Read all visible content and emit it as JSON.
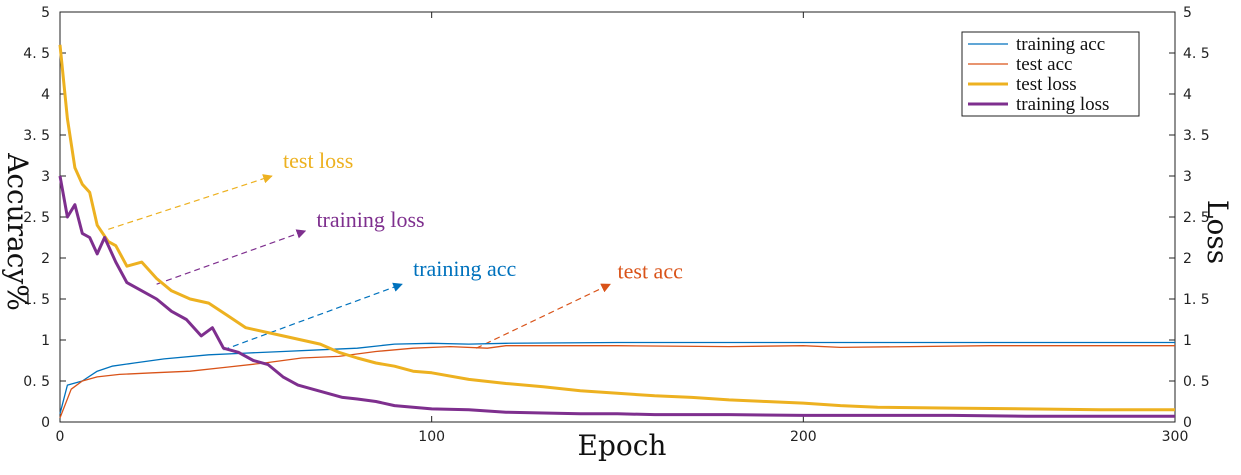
{
  "chart_data": {
    "type": "line",
    "xlabel": "Epoch",
    "ylabel_left": "Accuracy%",
    "ylabel_right": "Loss",
    "xlim": [
      0,
      300
    ],
    "ylim": [
      0,
      5
    ],
    "x_ticks": [
      "0",
      "100",
      "200",
      "300"
    ],
    "y_ticks": [
      "0",
      "0. 5",
      "1",
      "1. 5",
      "2",
      "2. 5",
      "3",
      "3. 5",
      "4",
      "4. 5",
      "5"
    ],
    "grid": false,
    "legend_position": "top-right",
    "series": [
      {
        "name": "training acc",
        "color": "#0072BD",
        "linewidth": "thin",
        "points": [
          [
            0,
            0.1
          ],
          [
            2,
            0.45
          ],
          [
            6,
            0.5
          ],
          [
            10,
            0.62
          ],
          [
            14,
            0.68
          ],
          [
            20,
            0.72
          ],
          [
            28,
            0.77
          ],
          [
            40,
            0.82
          ],
          [
            50,
            0.84
          ],
          [
            60,
            0.86
          ],
          [
            70,
            0.88
          ],
          [
            80,
            0.9
          ],
          [
            90,
            0.95
          ],
          [
            100,
            0.96
          ],
          [
            110,
            0.95
          ],
          [
            120,
            0.96
          ],
          [
            150,
            0.97
          ],
          [
            200,
            0.97
          ],
          [
            250,
            0.97
          ],
          [
            300,
            0.97
          ]
        ]
      },
      {
        "name": "test acc",
        "color": "#D95319",
        "linewidth": "thin",
        "points": [
          [
            0,
            0.05
          ],
          [
            3,
            0.4
          ],
          [
            6,
            0.5
          ],
          [
            10,
            0.55
          ],
          [
            16,
            0.58
          ],
          [
            25,
            0.6
          ],
          [
            35,
            0.62
          ],
          [
            45,
            0.67
          ],
          [
            55,
            0.72
          ],
          [
            65,
            0.78
          ],
          [
            75,
            0.8
          ],
          [
            85,
            0.86
          ],
          [
            95,
            0.9
          ],
          [
            105,
            0.92
          ],
          [
            115,
            0.9
          ],
          [
            120,
            0.93
          ],
          [
            150,
            0.93
          ],
          [
            180,
            0.92
          ],
          [
            200,
            0.93
          ],
          [
            210,
            0.91
          ],
          [
            250,
            0.93
          ],
          [
            300,
            0.93
          ]
        ]
      },
      {
        "name": "test loss",
        "color": "#EDB120",
        "linewidth": "thick",
        "points": [
          [
            0,
            4.6
          ],
          [
            2,
            3.7
          ],
          [
            4,
            3.1
          ],
          [
            6,
            2.9
          ],
          [
            8,
            2.8
          ],
          [
            10,
            2.4
          ],
          [
            13,
            2.2
          ],
          [
            15,
            2.15
          ],
          [
            18,
            1.9
          ],
          [
            22,
            1.95
          ],
          [
            26,
            1.75
          ],
          [
            30,
            1.6
          ],
          [
            35,
            1.5
          ],
          [
            40,
            1.45
          ],
          [
            45,
            1.3
          ],
          [
            50,
            1.15
          ],
          [
            55,
            1.1
          ],
          [
            60,
            1.05
          ],
          [
            65,
            1.0
          ],
          [
            70,
            0.95
          ],
          [
            75,
            0.85
          ],
          [
            80,
            0.78
          ],
          [
            85,
            0.72
          ],
          [
            90,
            0.68
          ],
          [
            95,
            0.62
          ],
          [
            100,
            0.6
          ],
          [
            110,
            0.52
          ],
          [
            120,
            0.47
          ],
          [
            130,
            0.43
          ],
          [
            140,
            0.38
          ],
          [
            150,
            0.35
          ],
          [
            160,
            0.32
          ],
          [
            170,
            0.3
          ],
          [
            180,
            0.27
          ],
          [
            190,
            0.25
          ],
          [
            200,
            0.23
          ],
          [
            210,
            0.2
          ],
          [
            220,
            0.18
          ],
          [
            240,
            0.17
          ],
          [
            260,
            0.16
          ],
          [
            280,
            0.15
          ],
          [
            300,
            0.15
          ]
        ]
      },
      {
        "name": "training loss",
        "color": "#7E2F8E",
        "linewidth": "thick",
        "points": [
          [
            0,
            3.0
          ],
          [
            2,
            2.5
          ],
          [
            4,
            2.65
          ],
          [
            6,
            2.3
          ],
          [
            8,
            2.25
          ],
          [
            10,
            2.05
          ],
          [
            12,
            2.25
          ],
          [
            15,
            1.95
          ],
          [
            18,
            1.7
          ],
          [
            22,
            1.6
          ],
          [
            26,
            1.5
          ],
          [
            30,
            1.35
          ],
          [
            34,
            1.25
          ],
          [
            38,
            1.05
          ],
          [
            41,
            1.15
          ],
          [
            44,
            0.9
          ],
          [
            48,
            0.85
          ],
          [
            52,
            0.75
          ],
          [
            56,
            0.7
          ],
          [
            60,
            0.55
          ],
          [
            64,
            0.45
          ],
          [
            68,
            0.4
          ],
          [
            72,
            0.35
          ],
          [
            76,
            0.3
          ],
          [
            80,
            0.28
          ],
          [
            85,
            0.25
          ],
          [
            90,
            0.2
          ],
          [
            95,
            0.18
          ],
          [
            100,
            0.16
          ],
          [
            110,
            0.15
          ],
          [
            120,
            0.12
          ],
          [
            130,
            0.11
          ],
          [
            140,
            0.1
          ],
          [
            150,
            0.1
          ],
          [
            160,
            0.09
          ],
          [
            180,
            0.09
          ],
          [
            200,
            0.08
          ],
          [
            220,
            0.08
          ],
          [
            240,
            0.08
          ],
          [
            260,
            0.07
          ],
          [
            280,
            0.07
          ],
          [
            300,
            0.07
          ]
        ]
      }
    ],
    "annotations": [
      {
        "text": "test loss",
        "color": "#EDB120",
        "from": [
          13,
          2.35
        ],
        "to": [
          57,
          3.0
        ],
        "label_at": [
          60,
          3.1
        ]
      },
      {
        "text": "training loss",
        "color": "#7E2F8E",
        "from": [
          26,
          1.68
        ],
        "to": [
          66,
          2.33
        ],
        "label_at": [
          69,
          2.38
        ]
      },
      {
        "text": "training acc",
        "color": "#0072BD",
        "from": [
          44,
          0.88
        ],
        "to": [
          92,
          1.68
        ],
        "label_at": [
          95,
          1.78
        ]
      },
      {
        "text": "test acc",
        "color": "#D95319",
        "from": [
          112,
          0.9
        ],
        "to": [
          148,
          1.68
        ],
        "label_at": [
          150,
          1.75
        ]
      }
    ]
  }
}
